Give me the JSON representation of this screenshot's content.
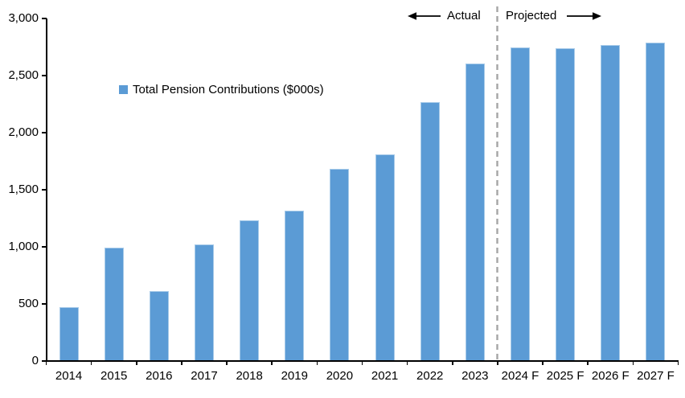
{
  "chart_data": {
    "type": "bar",
    "title": "",
    "legend": "Total Pension Contributions ($000s)",
    "categories": [
      "2014",
      "2015",
      "2016",
      "2017",
      "2018",
      "2019",
      "2020",
      "2021",
      "2022",
      "2023",
      "2024 F",
      "2025 F",
      "2026 F",
      "2027 F"
    ],
    "values": [
      470,
      990,
      610,
      1020,
      1235,
      1320,
      1680,
      1810,
      2270,
      2605,
      2745,
      2740,
      2765,
      2790
    ],
    "xlabel": "",
    "ylabel": "",
    "ylim": [
      0,
      3000
    ],
    "ytick_interval": 500,
    "ytick_labels": [
      "0",
      "500",
      "1,000",
      "1,500",
      "2,000",
      "2,500",
      "3,000"
    ],
    "grid": false,
    "legend_position": "upper-left-inside",
    "bar_color": "#5b9bd5",
    "divider_color": "#a6a6a6",
    "axis_color": "#000000",
    "annotations": {
      "actual_label": "Actual",
      "projected_label": "Projected",
      "divider_after_category": "2023"
    }
  }
}
